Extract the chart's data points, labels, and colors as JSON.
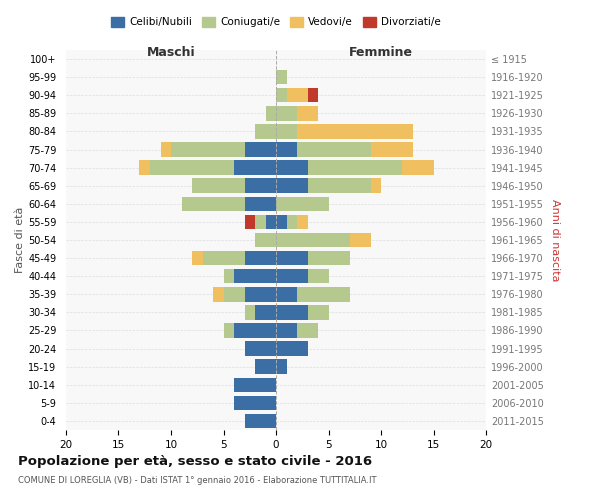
{
  "age_groups": [
    "0-4",
    "5-9",
    "10-14",
    "15-19",
    "20-24",
    "25-29",
    "30-34",
    "35-39",
    "40-44",
    "45-49",
    "50-54",
    "55-59",
    "60-64",
    "65-69",
    "70-74",
    "75-79",
    "80-84",
    "85-89",
    "90-94",
    "95-99",
    "100+"
  ],
  "birth_years": [
    "2011-2015",
    "2006-2010",
    "2001-2005",
    "1996-2000",
    "1991-1995",
    "1986-1990",
    "1981-1985",
    "1976-1980",
    "1971-1975",
    "1966-1970",
    "1961-1965",
    "1956-1960",
    "1951-1955",
    "1946-1950",
    "1941-1945",
    "1936-1940",
    "1931-1935",
    "1926-1930",
    "1921-1925",
    "1916-1920",
    "≤ 1915"
  ],
  "male": {
    "celibi": [
      3,
      4,
      4,
      2,
      3,
      4,
      2,
      3,
      4,
      3,
      0,
      1,
      3,
      3,
      4,
      3,
      0,
      0,
      0,
      0,
      0
    ],
    "coniugati": [
      0,
      0,
      0,
      0,
      0,
      1,
      1,
      2,
      1,
      4,
      2,
      1,
      6,
      5,
      8,
      7,
      2,
      1,
      0,
      0,
      0
    ],
    "vedovi": [
      0,
      0,
      0,
      0,
      0,
      0,
      0,
      1,
      0,
      1,
      0,
      0,
      0,
      0,
      1,
      1,
      0,
      0,
      0,
      0,
      0
    ],
    "divorziati": [
      0,
      0,
      0,
      0,
      0,
      0,
      0,
      0,
      0,
      0,
      0,
      1,
      0,
      0,
      0,
      0,
      0,
      0,
      0,
      0,
      0
    ]
  },
  "female": {
    "nubili": [
      0,
      0,
      0,
      1,
      3,
      2,
      3,
      2,
      3,
      3,
      0,
      1,
      0,
      3,
      3,
      2,
      0,
      0,
      0,
      0,
      0
    ],
    "coniugate": [
      0,
      0,
      0,
      0,
      0,
      2,
      2,
      5,
      2,
      4,
      7,
      1,
      5,
      6,
      9,
      7,
      2,
      2,
      1,
      1,
      0
    ],
    "vedove": [
      0,
      0,
      0,
      0,
      0,
      0,
      0,
      0,
      0,
      0,
      2,
      1,
      0,
      1,
      3,
      4,
      11,
      2,
      2,
      0,
      0
    ],
    "divorziate": [
      0,
      0,
      0,
      0,
      0,
      0,
      0,
      0,
      0,
      0,
      0,
      0,
      0,
      0,
      0,
      0,
      0,
      0,
      1,
      0,
      0
    ]
  },
  "colors": {
    "celibi_nubili": "#3a6ea5",
    "coniugati": "#b5c98e",
    "vedovi": "#f0c060",
    "divorziati": "#c0392b"
  },
  "title": "Popolazione per età, sesso e stato civile - 2016",
  "subtitle": "COMUNE DI LOREGLIA (VB) - Dati ISTAT 1° gennaio 2016 - Elaborazione TUTTITALIA.IT",
  "xlabel_left": "Maschi",
  "xlabel_right": "Femmine",
  "ylabel_left": "Fasce di età",
  "ylabel_right": "Anni di nascita",
  "xlim": 20,
  "background_color": "#ffffff",
  "grid_color": "#cccccc"
}
